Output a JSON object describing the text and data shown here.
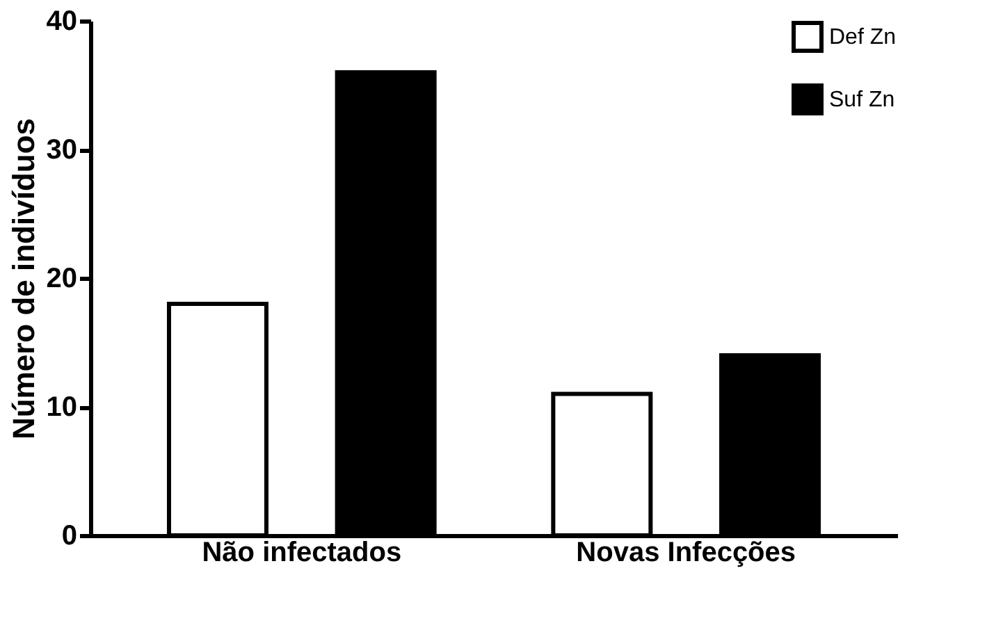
{
  "chart_data": {
    "type": "bar",
    "ylabel": "Número de indivíduos",
    "categories": [
      "Não infectados",
      "Novas Infecções"
    ],
    "series": [
      {
        "name": "Def Zn",
        "color": "#ffffff",
        "values": [
          18,
          11
        ]
      },
      {
        "name": "Suf Zn",
        "color": "#000000",
        "values": [
          36,
          14
        ]
      }
    ],
    "ylim": [
      0,
      40
    ],
    "yticks": [
      0,
      10,
      20,
      30,
      40
    ],
    "grid": false,
    "legend": "top right"
  }
}
